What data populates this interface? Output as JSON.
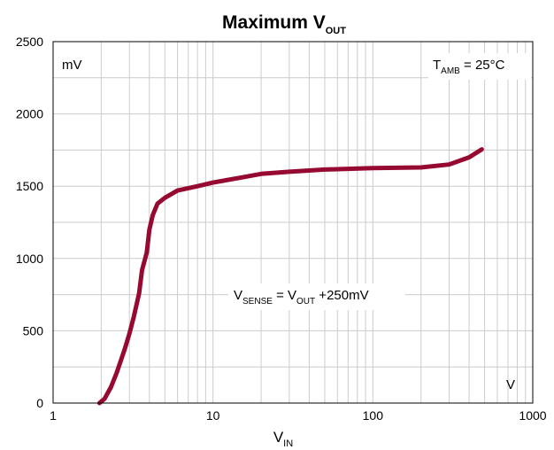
{
  "chart_data": {
    "type": "line",
    "title": {
      "main": "Maximum V",
      "sub": "OUT"
    },
    "xlabel": {
      "main": "V",
      "sub": "IN"
    },
    "ylabel": "",
    "x_scale": "log",
    "xlim": [
      1,
      1000
    ],
    "ylim": [
      0,
      2500
    ],
    "x_ticks": [
      1,
      10,
      100,
      1000
    ],
    "x_tick_labels": [
      "1",
      "10",
      "100",
      "1000"
    ],
    "y_ticks": [
      0,
      500,
      1000,
      1500,
      2000,
      2500
    ],
    "y_tick_labels": [
      "0",
      "500",
      "1000",
      "1500",
      "2000",
      "2500"
    ],
    "grid": true,
    "units": {
      "y": "mV",
      "x": "V"
    },
    "annotations": {
      "temperature": {
        "prefix": "T",
        "sub": "AMB",
        "suffix": " = 25°C"
      },
      "condition": {
        "v1": "V",
        "s1": "SENSE",
        "mid": " = V",
        "s2": "OUT",
        "tail": " +250mV"
      }
    },
    "series": [
      {
        "color": "#960a32",
        "points": [
          [
            1.95,
            0
          ],
          [
            2.1,
            30
          ],
          [
            2.3,
            110
          ],
          [
            2.5,
            210
          ],
          [
            2.8,
            370
          ],
          [
            3.0,
            480
          ],
          [
            3.2,
            600
          ],
          [
            3.45,
            760
          ],
          [
            3.6,
            920
          ],
          [
            3.85,
            1040
          ],
          [
            4.0,
            1200
          ],
          [
            4.2,
            1300
          ],
          [
            4.5,
            1380
          ],
          [
            5.0,
            1420
          ],
          [
            6.0,
            1470
          ],
          [
            8.0,
            1500
          ],
          [
            10,
            1525
          ],
          [
            15,
            1560
          ],
          [
            20,
            1585
          ],
          [
            30,
            1600
          ],
          [
            50,
            1615
          ],
          [
            100,
            1625
          ],
          [
            200,
            1630
          ],
          [
            300,
            1650
          ],
          [
            400,
            1700
          ],
          [
            480,
            1755
          ]
        ]
      }
    ]
  }
}
